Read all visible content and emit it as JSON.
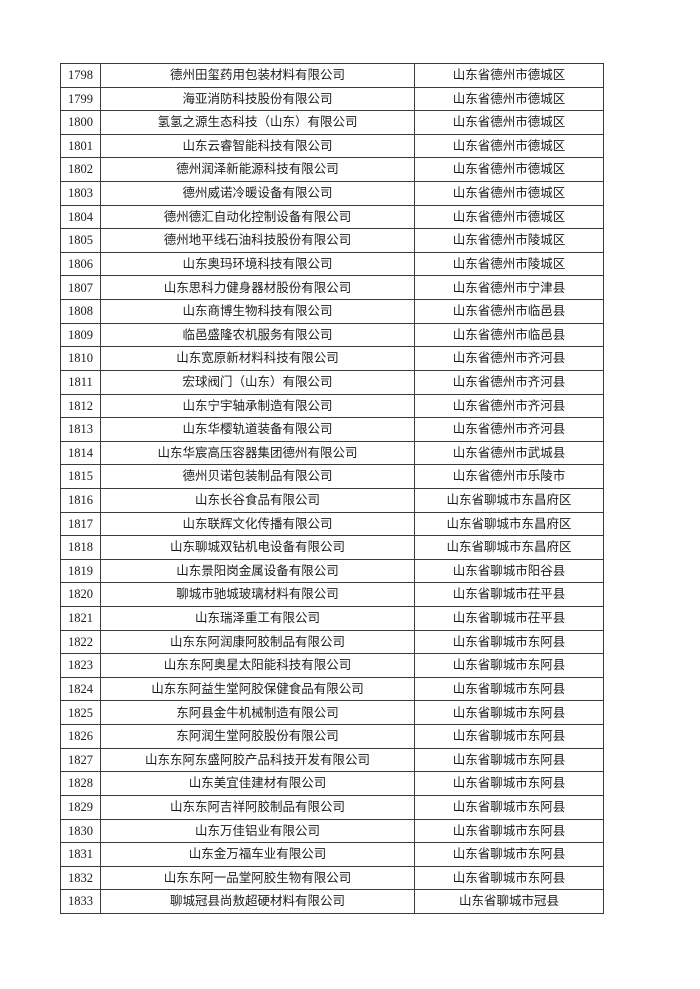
{
  "page": {
    "background_color": "#ffffff",
    "text_color": "#1c1c1c",
    "table_border_color": "#3c3c3c"
  },
  "table": {
    "rows": [
      [
        "1798",
        "德州田玺药用包装材料有限公司",
        "山东省德州市德城区"
      ],
      [
        "1799",
        "海亚消防科技股份有限公司",
        "山东省德州市德城区"
      ],
      [
        "1800",
        "氢氢之源生态科技（山东）有限公司",
        "山东省德州市德城区"
      ],
      [
        "1801",
        "山东云睿智能科技有限公司",
        "山东省德州市德城区"
      ],
      [
        "1802",
        "德州润泽新能源科技有限公司",
        "山东省德州市德城区"
      ],
      [
        "1803",
        "德州威诺冷暖设备有限公司",
        "山东省德州市德城区"
      ],
      [
        "1804",
        "德州德汇自动化控制设备有限公司",
        "山东省德州市德城区"
      ],
      [
        "1805",
        "德州地平线石油科技股份有限公司",
        "山东省德州市陵城区"
      ],
      [
        "1806",
        "山东奥玛环境科技有限公司",
        "山东省德州市陵城区"
      ],
      [
        "1807",
        "山东思科力健身器材股份有限公司",
        "山东省德州市宁津县"
      ],
      [
        "1808",
        "山东商博生物科技有限公司",
        "山东省德州市临邑县"
      ],
      [
        "1809",
        "临邑盛隆农机服务有限公司",
        "山东省德州市临邑县"
      ],
      [
        "1810",
        "山东宽原新材料科技有限公司",
        "山东省德州市齐河县"
      ],
      [
        "1811",
        "宏球阀门（山东）有限公司",
        "山东省德州市齐河县"
      ],
      [
        "1812",
        "山东宁宇轴承制造有限公司",
        "山东省德州市齐河县"
      ],
      [
        "1813",
        "山东华樱轨道装备有限公司",
        "山东省德州市齐河县"
      ],
      [
        "1814",
        "山东华宸高压容器集团德州有限公司",
        "山东省德州市武城县"
      ],
      [
        "1815",
        "德州贝诺包装制品有限公司",
        "山东省德州市乐陵市"
      ],
      [
        "1816",
        "山东长谷食品有限公司",
        "山东省聊城市东昌府区"
      ],
      [
        "1817",
        "山东联辉文化传播有限公司",
        "山东省聊城市东昌府区"
      ],
      [
        "1818",
        "山东聊城双钻机电设备有限公司",
        "山东省聊城市东昌府区"
      ],
      [
        "1819",
        "山东景阳岗金属设备有限公司",
        "山东省聊城市阳谷县"
      ],
      [
        "1820",
        "聊城市驰城玻璃材料有限公司",
        "山东省聊城市茌平县"
      ],
      [
        "1821",
        "山东瑞泽重工有限公司",
        "山东省聊城市茌平县"
      ],
      [
        "1822",
        "山东东阿润康阿胶制品有限公司",
        "山东省聊城市东阿县"
      ],
      [
        "1823",
        "山东东阿奥星太阳能科技有限公司",
        "山东省聊城市东阿县"
      ],
      [
        "1824",
        "山东东阿益生堂阿胶保健食品有限公司",
        "山东省聊城市东阿县"
      ],
      [
        "1825",
        "东阿县金牛机械制造有限公司",
        "山东省聊城市东阿县"
      ],
      [
        "1826",
        "东阿润生堂阿胶股份有限公司",
        "山东省聊城市东阿县"
      ],
      [
        "1827",
        "山东东阿东盛阿胶产品科技开发有限公司",
        "山东省聊城市东阿县"
      ],
      [
        "1828",
        "山东美宜佳建材有限公司",
        "山东省聊城市东阿县"
      ],
      [
        "1829",
        "山东东阿吉祥阿胶制品有限公司",
        "山东省聊城市东阿县"
      ],
      [
        "1830",
        "山东万佳铝业有限公司",
        "山东省聊城市东阿县"
      ],
      [
        "1831",
        "山东金万福车业有限公司",
        "山东省聊城市东阿县"
      ],
      [
        "1832",
        "山东东阿一品堂阿胶生物有限公司",
        "山东省聊城市东阿县"
      ],
      [
        "1833",
        "聊城冠县尚敖超硬材料有限公司",
        "山东省聊城市冠县"
      ]
    ]
  }
}
